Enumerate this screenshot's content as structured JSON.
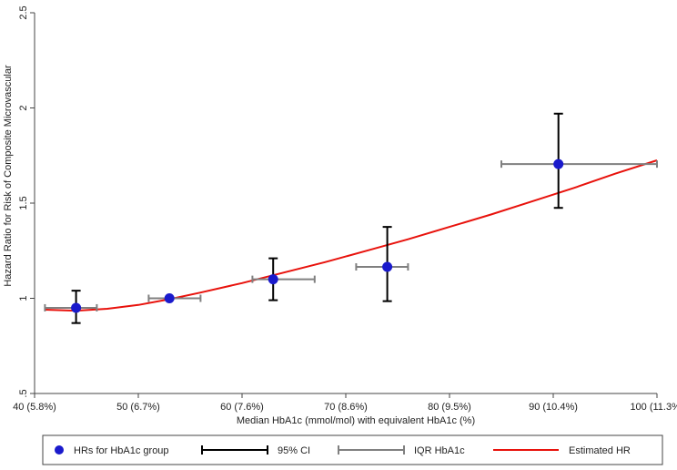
{
  "chart_data": {
    "type": "scatter",
    "xlabel": "Median HbA1c (mmol/mol) with equivalent HbA1c (%)",
    "ylabel": "Hazard Ratio for Risk of Composite Microvascular",
    "xlim": [
      40,
      100
    ],
    "ylim": [
      0.5,
      2.5
    ],
    "x_ticks": [
      {
        "value": 40,
        "label": "40 (5.8%)"
      },
      {
        "value": 50,
        "label": "50 (6.7%)"
      },
      {
        "value": 60,
        "label": "60 (7.6%)"
      },
      {
        "value": 70,
        "label": "70 (8.6%)"
      },
      {
        "value": 80,
        "label": "80 (9.5%)"
      },
      {
        "value": 90,
        "label": "90 (10.4%)"
      },
      {
        "value": 100,
        "label": "100 (11.3%)"
      }
    ],
    "y_ticks": [
      {
        "value": 0.5,
        "label": ".5"
      },
      {
        "value": 1,
        "label": "1"
      },
      {
        "value": 1.5,
        "label": "1.5"
      },
      {
        "value": 2,
        "label": "2"
      },
      {
        "value": 2.5,
        "label": "2.5"
      }
    ],
    "grid": false,
    "legend_position": "bottom",
    "points": [
      {
        "x": 44,
        "y": 0.95,
        "ci_low": 0.87,
        "ci_high": 1.04,
        "iqr_low": 41,
        "iqr_high": 46
      },
      {
        "x": 53,
        "y": 1.0,
        "ci_low": 1.0,
        "ci_high": 1.0,
        "iqr_low": 51,
        "iqr_high": 56
      },
      {
        "x": 63,
        "y": 1.1,
        "ci_low": 0.99,
        "ci_high": 1.21,
        "iqr_low": 61,
        "iqr_high": 67
      },
      {
        "x": 74,
        "y": 1.165,
        "ci_low": 0.985,
        "ci_high": 1.375,
        "iqr_low": 71,
        "iqr_high": 76
      },
      {
        "x": 90.5,
        "y": 1.705,
        "ci_low": 1.475,
        "ci_high": 1.97,
        "iqr_low": 85,
        "iqr_high": 100
      }
    ],
    "estimated_hr_curve": {
      "x": [
        41,
        44,
        47,
        50,
        53,
        56,
        60,
        64,
        68,
        72,
        76,
        80,
        84,
        88,
        92,
        96,
        100
      ],
      "y": [
        0.94,
        0.935,
        0.945,
        0.965,
        0.995,
        1.03,
        1.08,
        1.135,
        1.19,
        1.25,
        1.31,
        1.375,
        1.44,
        1.51,
        1.58,
        1.655,
        1.725
      ]
    },
    "legend": [
      {
        "label": "HRs for HbA1c group",
        "symbol": "dot"
      },
      {
        "label": "95% CI",
        "symbol": "ci-bar"
      },
      {
        "label": "IQR HbA1c",
        "symbol": "iqr-bar"
      },
      {
        "label": "Estimated HR",
        "symbol": "line"
      }
    ],
    "colors": {
      "point": "#1a1acc",
      "ci": "#000000",
      "iqr": "#808080",
      "curve": "#e8120c",
      "axis": "#444444"
    }
  }
}
